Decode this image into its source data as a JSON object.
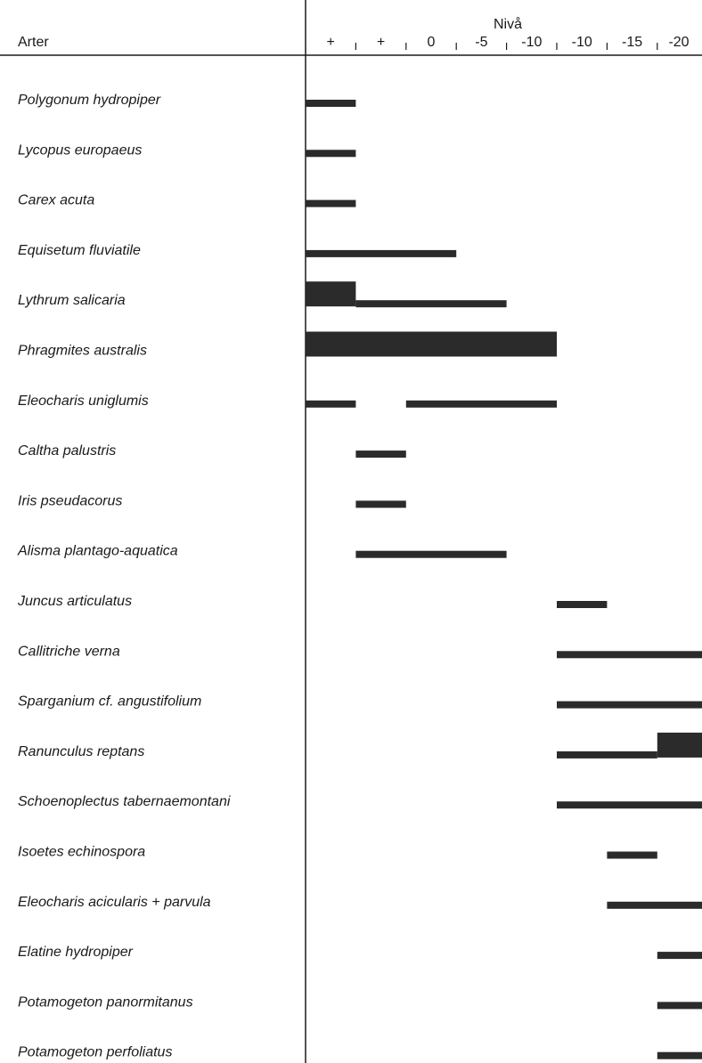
{
  "chart_data": {
    "type": "bar",
    "title": "",
    "header": {
      "species_label": "Arter",
      "level_label": "Nivå"
    },
    "level_ticks": [
      "+",
      "+",
      "0",
      "-5",
      "-10",
      "-10",
      "-15",
      "-20"
    ],
    "colors": {
      "ink": "#1a1a1a",
      "bar": "#2b2b2b"
    },
    "series": [
      {
        "species": "Polygonum hydropiper",
        "segments": [
          {
            "from": 0,
            "to": 1,
            "weight": "thin"
          }
        ]
      },
      {
        "species": "Lycopus europaeus",
        "segments": [
          {
            "from": 0,
            "to": 1,
            "weight": "thin"
          }
        ]
      },
      {
        "species": "Carex acuta",
        "segments": [
          {
            "from": 0,
            "to": 1,
            "weight": "thin"
          }
        ]
      },
      {
        "species": "Equisetum fluviatile",
        "segments": [
          {
            "from": 0,
            "to": 3,
            "weight": "thin"
          }
        ]
      },
      {
        "species": "Lythrum salicaria",
        "segments": [
          {
            "from": 0,
            "to": 1,
            "weight": "thick"
          },
          {
            "from": 1,
            "to": 4,
            "weight": "thin"
          }
        ]
      },
      {
        "species": "Phragmites australis",
        "segments": [
          {
            "from": 0,
            "to": 5,
            "weight": "thick"
          }
        ]
      },
      {
        "species": "Eleocharis uniglumis",
        "segments": [
          {
            "from": 0,
            "to": 1,
            "weight": "thin"
          },
          {
            "from": 2,
            "to": 5,
            "weight": "thin"
          }
        ]
      },
      {
        "species": "Caltha palustris",
        "segments": [
          {
            "from": 1,
            "to": 2,
            "weight": "thin"
          }
        ]
      },
      {
        "species": "Iris pseudacorus",
        "segments": [
          {
            "from": 1,
            "to": 2,
            "weight": "thin"
          }
        ]
      },
      {
        "species": "Alisma plantago-aquatica",
        "segments": [
          {
            "from": 1,
            "to": 4,
            "weight": "thin"
          }
        ]
      },
      {
        "species": "Juncus articulatus",
        "segments": [
          {
            "from": 5,
            "to": 6,
            "weight": "thin"
          }
        ]
      },
      {
        "species": "Callitriche verna",
        "segments": [
          {
            "from": 5,
            "to": 8,
            "weight": "thin"
          }
        ]
      },
      {
        "species": "Sparganium cf. angustifolium",
        "segments": [
          {
            "from": 5,
            "to": 8,
            "weight": "thin"
          }
        ]
      },
      {
        "species": "Ranunculus reptans",
        "segments": [
          {
            "from": 5,
            "to": 7,
            "weight": "thin"
          },
          {
            "from": 7,
            "to": 8,
            "weight": "thick"
          }
        ]
      },
      {
        "species": "Schoenoplectus tabernaemontani",
        "segments": [
          {
            "from": 5,
            "to": 8,
            "weight": "thin"
          }
        ]
      },
      {
        "species": "Isoetes echinospora",
        "segments": [
          {
            "from": 6,
            "to": 7,
            "weight": "thin"
          }
        ]
      },
      {
        "species": "Eleocharis acicularis + parvula",
        "segments": [
          {
            "from": 6,
            "to": 8,
            "weight": "thin"
          }
        ]
      },
      {
        "species": "Elatine hydropiper",
        "segments": [
          {
            "from": 7,
            "to": 8,
            "weight": "thin"
          }
        ]
      },
      {
        "species": "Potamogeton  panormitanus",
        "segments": [
          {
            "from": 7,
            "to": 8,
            "weight": "thin"
          }
        ]
      },
      {
        "species": "Potamogeton perfoliatus",
        "segments": [
          {
            "from": 7,
            "to": 8,
            "weight": "thin"
          }
        ]
      }
    ]
  }
}
